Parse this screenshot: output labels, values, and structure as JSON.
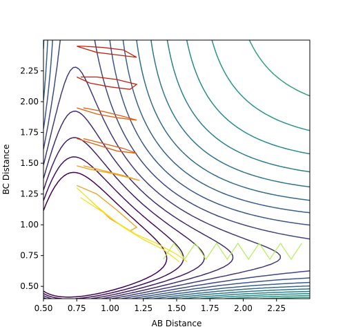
{
  "chart_data": {
    "type": "contour",
    "xlabel": "AB Distance",
    "ylabel": "BC Distance",
    "xlim": [
      0.5,
      2.5
    ],
    "ylim": [
      0.4,
      2.5
    ],
    "xticks": [
      "0.50",
      "0.75",
      "1.00",
      "1.25",
      "1.50",
      "1.75",
      "2.00",
      "2.25"
    ],
    "yticks": [
      "0.50",
      "0.75",
      "1.00",
      "1.25",
      "1.50",
      "1.75",
      "2.00",
      "2.25"
    ],
    "grid": false,
    "legend": "none",
    "colormap": [
      "#440154",
      "#3b528b",
      "#21918c",
      "#5ec962",
      "#fde725"
    ],
    "potential": {
      "well_depth": 1.0,
      "equilibrium_distance": 0.74,
      "morse_a": 2.0,
      "coupling": 0.3
    },
    "contour_levels": [
      -1.5,
      -1.4,
      -1.3,
      -1.2,
      -1.1,
      -1.0,
      -0.9,
      -0.8,
      -0.7,
      -0.6,
      -0.5,
      -0.4,
      -0.3,
      -0.2,
      -0.1,
      0.0,
      0.1,
      0.2,
      0.3,
      0.4,
      0.5,
      0.6,
      0.8,
      1.0
    ],
    "trajectory_colors": [
      "#c81e0a",
      "#e65c0a",
      "#f0a020",
      "#f5e020",
      "#b8f060"
    ],
    "trajectories": [
      {
        "ab": [
          0.75,
          0.9,
          1.05,
          1.2,
          1.1,
          0.95,
          0.8,
          0.75
        ],
        "bc": [
          2.45,
          2.4,
          2.38,
          2.36,
          2.42,
          2.44,
          2.45,
          2.45
        ]
      },
      {
        "ab": [
          0.75,
          0.85,
          1.0,
          1.15,
          1.2,
          1.05,
          0.9,
          0.78
        ],
        "bc": [
          2.2,
          2.15,
          2.12,
          2.1,
          2.14,
          2.18,
          2.2,
          2.2
        ]
      },
      {
        "ab": [
          0.75,
          0.9,
          1.05,
          1.2,
          1.1,
          0.95,
          0.8
        ],
        "bc": [
          1.95,
          1.9,
          1.87,
          1.85,
          1.88,
          1.92,
          1.95
        ]
      },
      {
        "ab": [
          0.75,
          0.9,
          1.05,
          1.2,
          1.1,
          0.95,
          0.8
        ],
        "bc": [
          1.7,
          1.65,
          1.6,
          1.58,
          1.62,
          1.66,
          1.7
        ]
      },
      {
        "ab": [
          0.75,
          0.85,
          1.0,
          1.15,
          1.22,
          1.1,
          0.95,
          0.8
        ],
        "bc": [
          1.48,
          1.45,
          1.42,
          1.38,
          1.36,
          1.4,
          1.44,
          1.48
        ]
      },
      {
        "ab": [
          0.75,
          0.9,
          1.05,
          1.2,
          1.15,
          1.0,
          0.85
        ],
        "bc": [
          1.32,
          1.25,
          1.12,
          0.98,
          0.95,
          1.05,
          1.2
        ]
      },
      {
        "ab": [
          0.78,
          0.95,
          1.1,
          1.25,
          1.4,
          1.52
        ],
        "bc": [
          1.22,
          1.1,
          0.98,
          0.88,
          0.8,
          0.7
        ]
      },
      {
        "ab": [
          0.75,
          0.9,
          1.05,
          1.2,
          1.35,
          1.5,
          1.58
        ],
        "bc": [
          1.3,
          1.15,
          1.02,
          0.92,
          0.85,
          0.76,
          0.7
        ]
      },
      {
        "ab": [
          1.4,
          1.48,
          1.56,
          1.64,
          1.72,
          1.8,
          1.88,
          1.96,
          2.04,
          2.12,
          2.2,
          2.28,
          2.36,
          2.44
        ],
        "bc": [
          0.72,
          0.85,
          0.72,
          0.85,
          0.72,
          0.85,
          0.72,
          0.85,
          0.72,
          0.85,
          0.72,
          0.85,
          0.72,
          0.85
        ]
      }
    ]
  }
}
